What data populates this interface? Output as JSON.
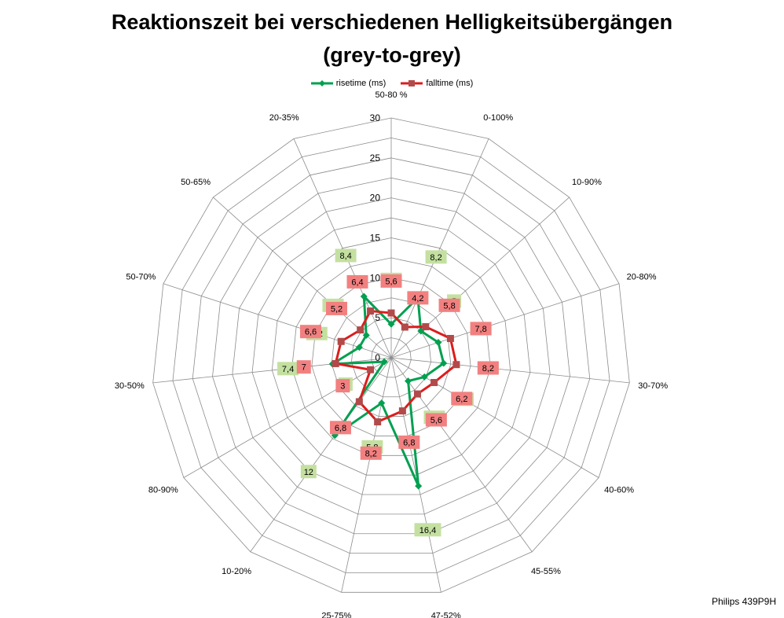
{
  "chart_data": {
    "type": "radar",
    "title": "Reaktionszeit bei verschiedenen Helligkeitsübergängen",
    "subtitle": "(grey-to-grey)",
    "categories": [
      "50-80 %",
      "0-100%",
      "10-90%",
      "20-80%",
      "30-70%",
      "40-60%",
      "45-55%",
      "47-52%",
      "25-75%",
      "10-20%",
      "80-90%",
      "30-50%",
      "50-70%",
      "50-65%",
      "20-35%"
    ],
    "rlim": [
      0,
      30
    ],
    "r_ticks": [
      0,
      5,
      10,
      15,
      20,
      25,
      30
    ],
    "series": [
      {
        "name": "risetime (ms)",
        "color": "#00a050",
        "marker": "diamond",
        "label_bg": "#c4e0a0",
        "values": [
          4.2,
          8.2,
          5,
          6.2,
          6.6,
          4.8,
          3.6,
          16.4,
          5.8,
          12,
          1,
          7.4,
          4.2,
          4.2,
          8.4
        ],
        "labels": [
          "4,2",
          "8,2",
          "5",
          "6,2",
          "6,6",
          "4,8",
          "3,6",
          "16,4",
          "5,8",
          "12",
          "1",
          "7,4",
          "4,2",
          "4,2",
          "8,4"
        ]
      },
      {
        "name": "falltime (ms)",
        "color": "#dd1c1c",
        "marker": "square",
        "label_bg": "#f28080",
        "values": [
          5.6,
          4.2,
          5.8,
          7.8,
          8.2,
          6.2,
          5.6,
          6.8,
          8.2,
          6.8,
          3,
          7,
          6.6,
          5.2,
          6.4
        ],
        "labels": [
          "5,6",
          "4,2",
          "5,8",
          "7,8",
          "8,2",
          "6,2",
          "5,6",
          "6,8",
          "8,2",
          "6,8",
          "3",
          "7",
          "6,6",
          "5,2",
          "6,4"
        ]
      }
    ],
    "grid": true,
    "legend": "top-center"
  },
  "source_label": "Philips 439P9H"
}
